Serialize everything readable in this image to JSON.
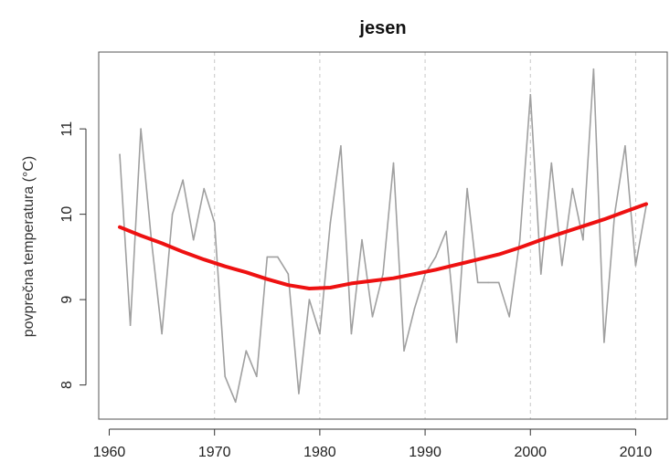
{
  "chart_data": {
    "type": "line",
    "title": "jesen",
    "xlabel": "",
    "ylabel": "povprečna temperatura (°C)",
    "xlim": [
      1959,
      2013
    ],
    "ylim": [
      7.6,
      11.9
    ],
    "x_ticks": [
      1960,
      1970,
      1980,
      1990,
      2000,
      2010
    ],
    "y_ticks": [
      8,
      9,
      10,
      11
    ],
    "x_tick_labels": [
      "1960",
      "1970",
      "1980",
      "1990",
      "2000",
      "2010"
    ],
    "y_tick_labels": [
      "8",
      "9",
      "10",
      "11"
    ],
    "vertical_grid": [
      1970,
      1980,
      1990,
      2000,
      2010
    ],
    "grid": true,
    "series": [
      {
        "color": "#a0a0a0",
        "style": "line",
        "x": [
          1961,
          1962,
          1963,
          1964,
          1965,
          1966,
          1967,
          1968,
          1969,
          1970,
          1971,
          1972,
          1973,
          1974,
          1975,
          1976,
          1977,
          1978,
          1979,
          1980,
          1981,
          1982,
          1983,
          1984,
          1985,
          1986,
          1987,
          1988,
          1989,
          1990,
          1991,
          1992,
          1993,
          1994,
          1995,
          1996,
          1997,
          1998,
          1999,
          2000,
          2001,
          2002,
          2003,
          2004,
          2005,
          2006,
          2007,
          2008,
          2009,
          2010,
          2011
        ],
        "y": [
          10.7,
          8.7,
          11.0,
          9.7,
          8.6,
          10.0,
          10.4,
          9.7,
          10.3,
          9.9,
          8.1,
          7.8,
          8.4,
          8.1,
          9.5,
          9.5,
          9.3,
          7.9,
          9.0,
          8.6,
          9.9,
          10.8,
          8.6,
          9.7,
          8.8,
          9.3,
          10.6,
          8.4,
          8.9,
          9.3,
          9.5,
          9.8,
          8.5,
          10.3,
          9.2,
          9.2,
          9.2,
          8.8,
          9.7,
          11.4,
          9.3,
          10.6,
          9.4,
          10.3,
          9.7,
          11.7,
          8.5,
          10.0,
          10.8,
          9.4,
          10.1
        ]
      },
      {
        "color": "#ee1111",
        "style": "smooth",
        "x": [
          1961,
          1963,
          1965,
          1967,
          1969,
          1971,
          1973,
          1975,
          1977,
          1979,
          1981,
          1983,
          1985,
          1987,
          1989,
          1991,
          1993,
          1995,
          1997,
          1999,
          2001,
          2003,
          2005,
          2007,
          2009,
          2011
        ],
        "y": [
          9.85,
          9.75,
          9.66,
          9.56,
          9.47,
          9.39,
          9.32,
          9.24,
          9.17,
          9.13,
          9.14,
          9.19,
          9.22,
          9.25,
          9.3,
          9.35,
          9.41,
          9.47,
          9.53,
          9.61,
          9.7,
          9.78,
          9.86,
          9.94,
          10.03,
          10.12
        ]
      }
    ]
  }
}
